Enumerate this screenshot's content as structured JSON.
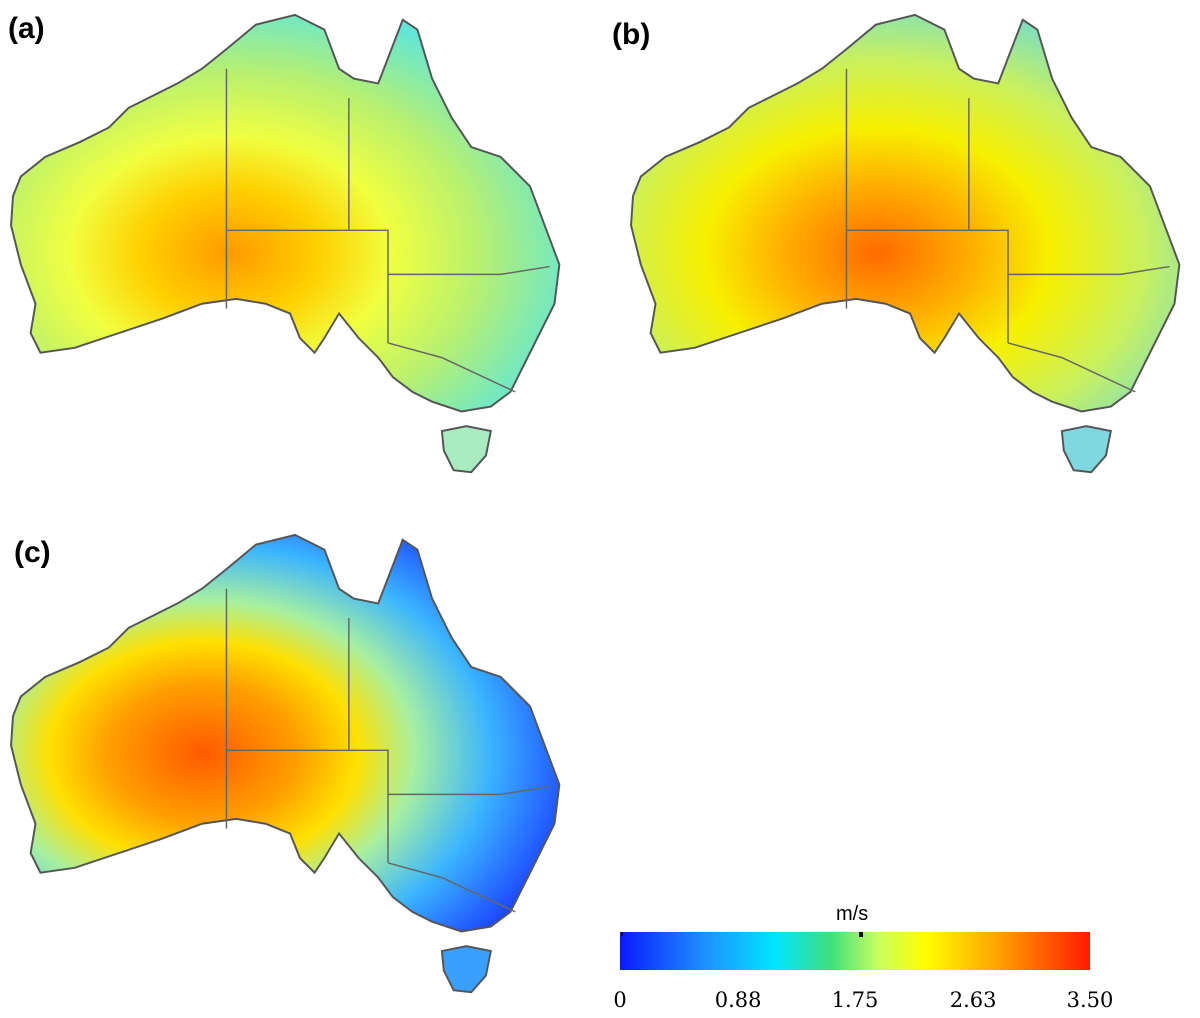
{
  "panels": [
    {
      "label": "(a)"
    },
    {
      "label": "(b)"
    },
    {
      "label": "(c)"
    }
  ],
  "legend": {
    "unit": "m/s",
    "ticks": [
      "0",
      "0.88",
      "1.75",
      "2.63",
      "3.50"
    ],
    "range": [
      0,
      3.5
    ],
    "colors": [
      "#0a1aff",
      "#1e90ff",
      "#00e5ff",
      "#40e07a",
      "#c8ff60",
      "#ffff00",
      "#ffa500",
      "#ff1a00"
    ]
  }
}
